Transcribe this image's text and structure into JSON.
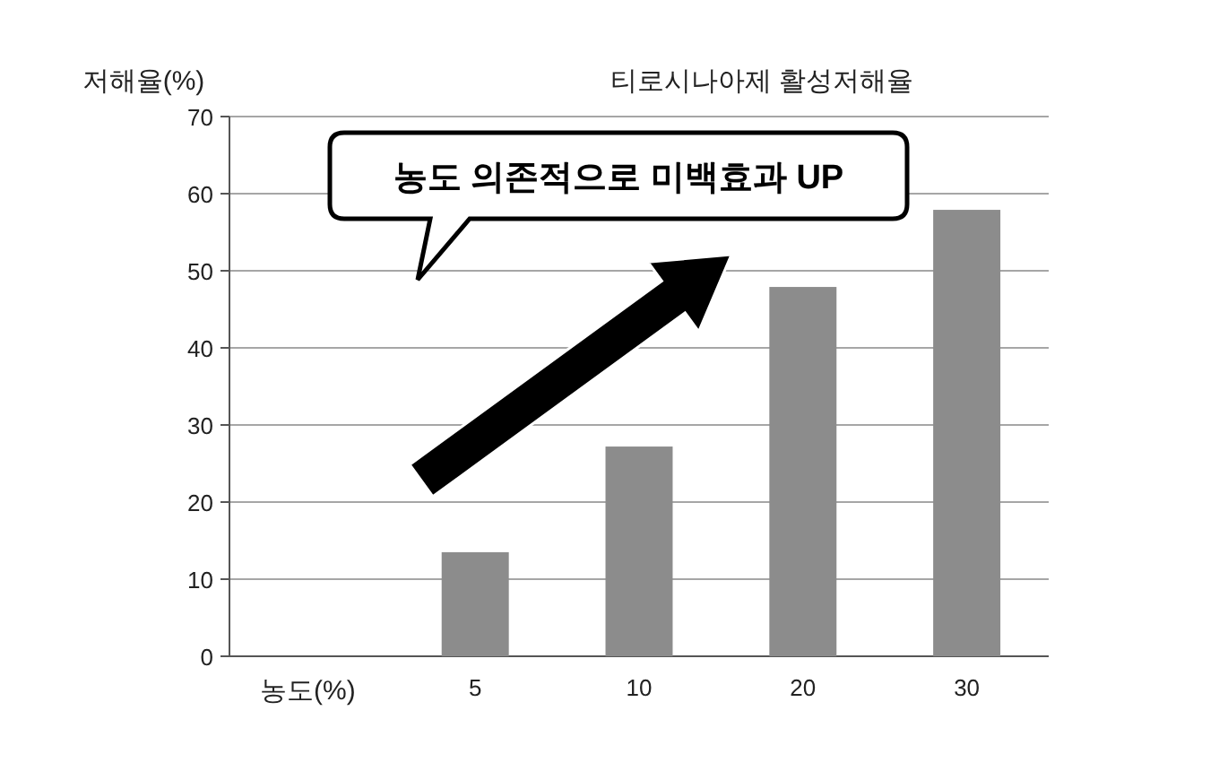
{
  "chart_data": {
    "type": "bar",
    "title": "티로시나아제 활성저해율",
    "ylabel": "저해율(%)",
    "xlabel": "농도(%)",
    "categories": [
      null,
      "5",
      "10",
      "20",
      "30"
    ],
    "values": [
      null,
      13.5,
      27.2,
      47.9,
      57.9
    ],
    "color": "#8c8c8c",
    "ylim": [
      0,
      70
    ],
    "yticks": [
      0,
      10,
      20,
      30,
      40,
      50,
      60,
      70
    ],
    "grid": "y",
    "annotations": [
      "농도 의존적으로 미백효과 UP"
    ]
  }
}
